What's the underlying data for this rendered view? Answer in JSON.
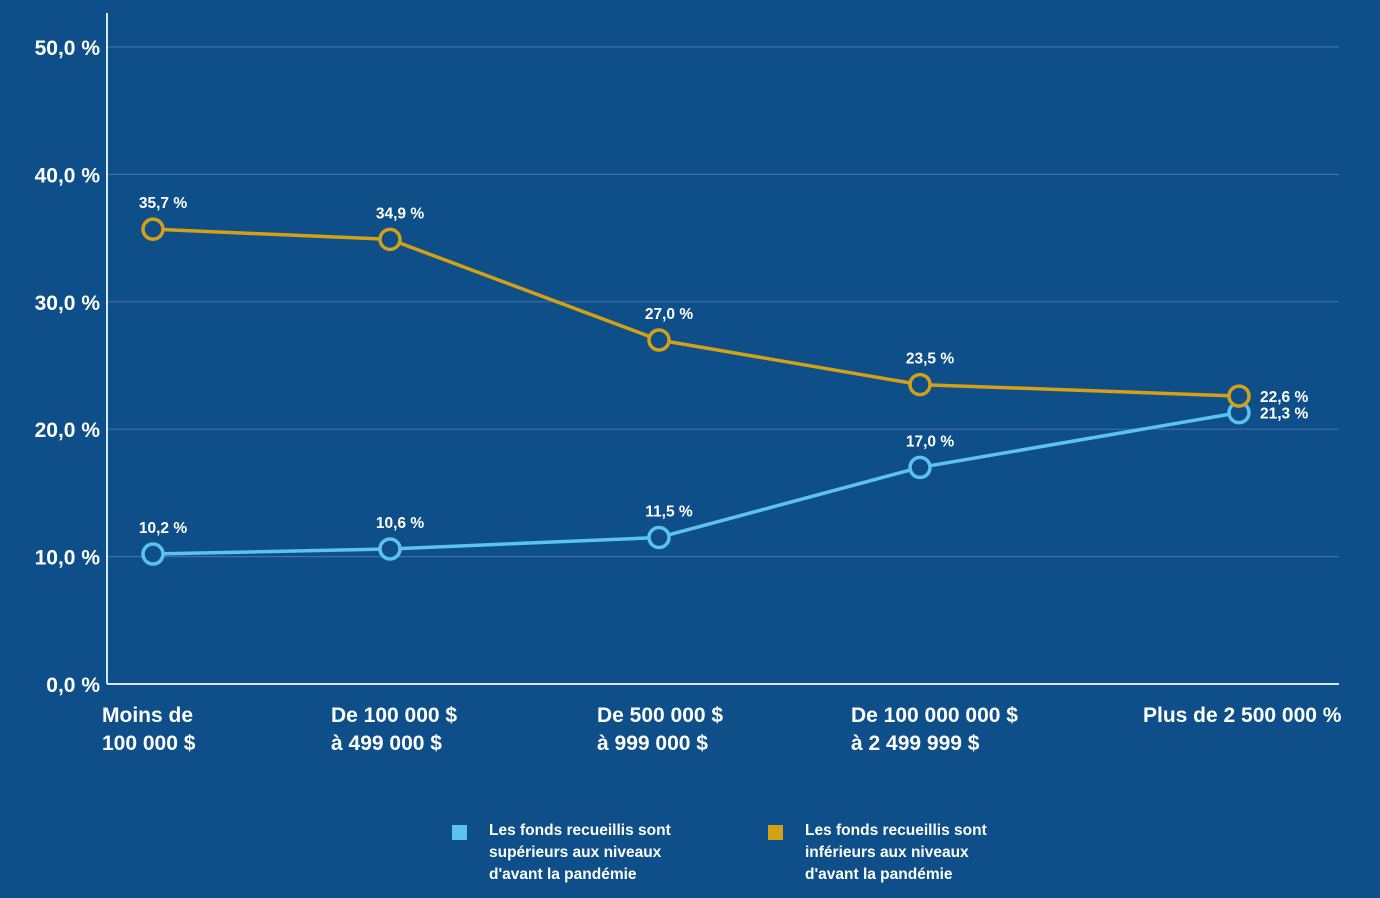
{
  "chart_data": {
    "type": "line",
    "title": "",
    "xlabel": "",
    "ylabel": "",
    "ylim": [
      0,
      50
    ],
    "yticks": [
      "0,0 %",
      "10,0 %",
      "20,0 %",
      "30,0 %",
      "40,0 %",
      "50,0 %"
    ],
    "ytick_values": [
      0,
      10,
      20,
      30,
      40,
      50
    ],
    "grid": true,
    "legend_position": "bottom",
    "categories": [
      [
        "Moins de",
        "100 000 $"
      ],
      [
        "De 100 000 $",
        "à 499 000 $"
      ],
      [
        "De 500 000 $",
        "à 999 000 $"
      ],
      [
        "De 100 000 000 $",
        "à 2 499 999 $"
      ],
      [
        "Plus de 2 500 000 %"
      ]
    ],
    "series": [
      {
        "name": "Les fonds recueillis sont supérieurs aux niveaux d'avant la pandémie",
        "legend_lines": "Les fonds recueillis sont\nsupérieurs aux niveaux\nd'avant la pandémie",
        "color": "#5BC2F2",
        "values": [
          10.2,
          10.6,
          11.5,
          17.0,
          21.3
        ],
        "labels": [
          "10,2 %",
          "10,6 %",
          "11,5 %",
          "17,0 %",
          "21,3 %"
        ]
      },
      {
        "name": "Les fonds recueillis sont inférieurs aux niveaux d'avant la pandémie",
        "legend_lines": "Les fonds recueillis sont\ninférieurs aux niveaux\nd'avant la pandémie",
        "color": "#D4A017",
        "values": [
          35.7,
          34.9,
          27.0,
          23.5,
          22.6
        ],
        "labels": [
          "35,7 %",
          "34,9 %",
          "27,0 %",
          "23,5 %",
          "22,6 %"
        ]
      }
    ]
  },
  "colors": {
    "background": "#0E4F8A",
    "gridline": "#3D6FA8",
    "axis": "#D8E4F0",
    "text": "#FFFFFF"
  }
}
